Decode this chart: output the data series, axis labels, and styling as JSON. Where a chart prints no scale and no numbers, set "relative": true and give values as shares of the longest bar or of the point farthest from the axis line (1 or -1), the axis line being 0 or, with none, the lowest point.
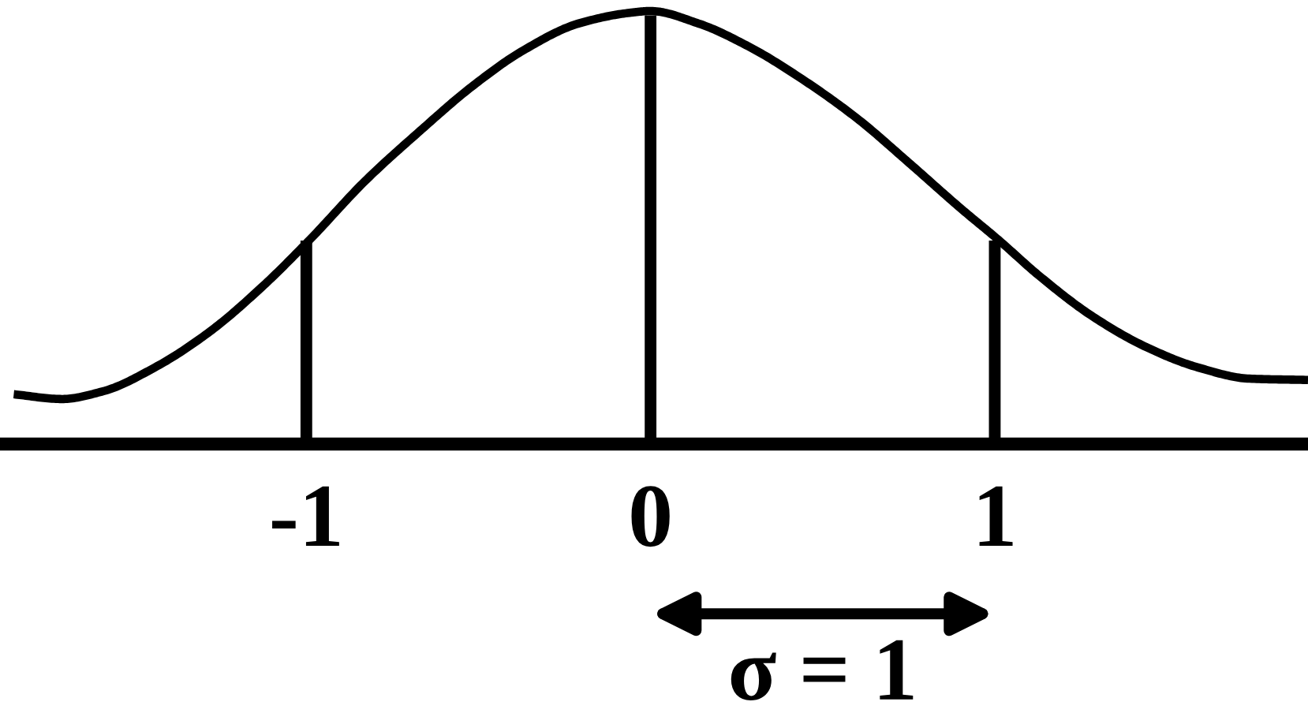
{
  "chart_data": {
    "type": "line",
    "relative": true,
    "xlim": [
      -1.89,
      1.91
    ],
    "xticks": [
      -1,
      0,
      1
    ],
    "tick_labels": "x",
    "annotations": [
      "σ = 1"
    ],
    "series": [
      {
        "color": "#000000",
        "x": [
          -1.85,
          -1.71,
          -1.59,
          -1.44,
          -1.28,
          -1.13,
          -0.99,
          -0.83,
          -0.67,
          -0.52,
          -0.37,
          -0.21,
          -0.06,
          0,
          0.14,
          0.29,
          0.44,
          0.6,
          0.75,
          0.9,
          1.01,
          1.13,
          1.28,
          1.44,
          1.59,
          1.74,
          1.91
        ],
        "values": [
          0.115,
          0.104,
          0.122,
          0.177,
          0.26,
          0.362,
          0.472,
          0.607,
          0.723,
          0.825,
          0.909,
          0.971,
          0.996,
          1,
          0.971,
          0.916,
          0.843,
          0.752,
          0.65,
          0.545,
          0.472,
          0.388,
          0.297,
          0.224,
          0.177,
          0.151,
          0.148
        ]
      },
      {
        "type": "bar",
        "color": "#000000",
        "x": [
          -1,
          0,
          1
        ],
        "values": [
          0.47,
          0.99,
          0.47
        ]
      }
    ]
  }
}
